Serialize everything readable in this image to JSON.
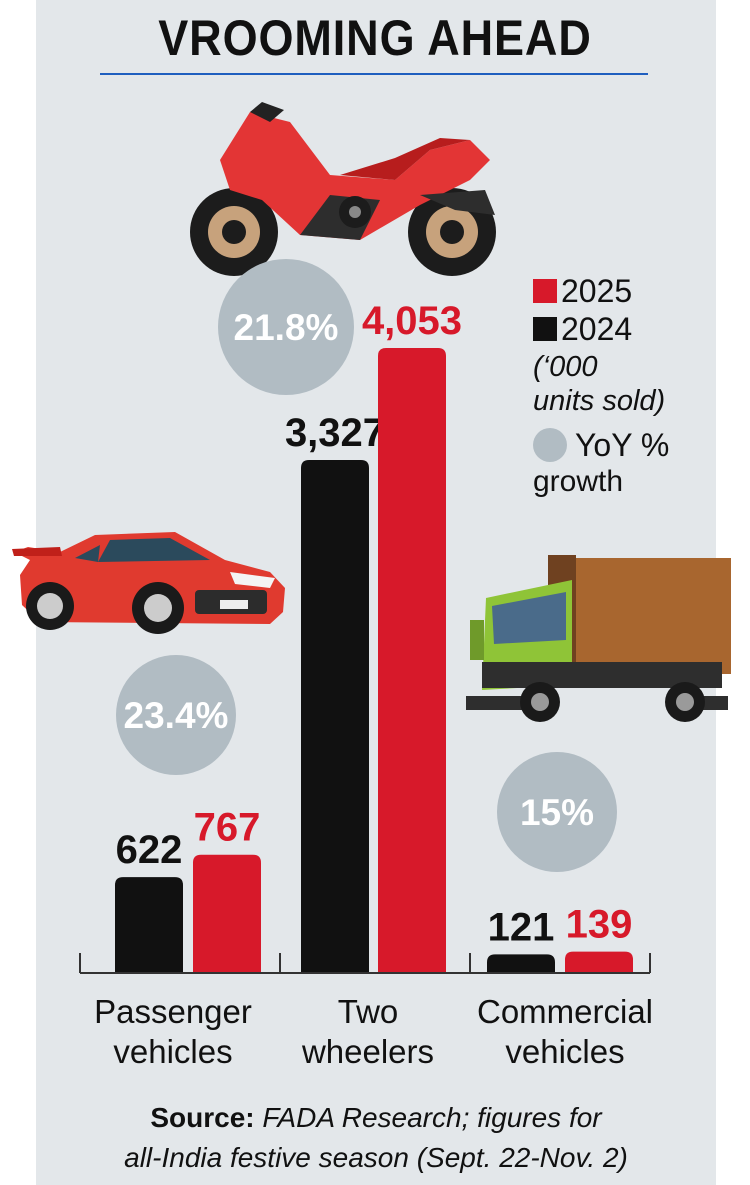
{
  "title": "VROOMING AHEAD",
  "legend": {
    "series_2025": "2025",
    "series_2024": "2024",
    "units_line1": "(‘000",
    "units_line2": "units sold)",
    "growth_line1": "YoY %",
    "growth_line2": "growth"
  },
  "categories": [
    {
      "line1": "Passenger",
      "line2": "vehicles"
    },
    {
      "line1": "Two",
      "line2": "wheelers"
    },
    {
      "line1": "Commercial",
      "line2": "vehicles"
    }
  ],
  "source": {
    "label": "Source:",
    "text_line1": "FADA Research; figures for",
    "text_line2": "all-India festive season (Sept. 22-Nov. 2)"
  },
  "colors": {
    "series_2025": "#d7192a",
    "series_2024": "#111111",
    "growth": "#b1bcc3",
    "background": "#e3e7ea"
  },
  "icons": [
    "motorcycle-icon",
    "sports-car-icon",
    "truck-icon"
  ],
  "chart_data": {
    "type": "bar",
    "categories": [
      "Passenger vehicles",
      "Two wheelers",
      "Commercial vehicles"
    ],
    "series": [
      {
        "name": "2024",
        "values": [
          622,
          3327,
          121
        ],
        "labels": [
          "622",
          "3,327",
          "121"
        ]
      },
      {
        "name": "2025",
        "values": [
          767,
          4053,
          139
        ],
        "labels": [
          "767",
          "4,053",
          "139"
        ]
      }
    ],
    "growth_labels": [
      "23.4%",
      "21.8%",
      "15%"
    ],
    "title": "VROOMING AHEAD",
    "ylabel": "",
    "ylim": [
      0,
      4053
    ],
    "grid": false
  }
}
